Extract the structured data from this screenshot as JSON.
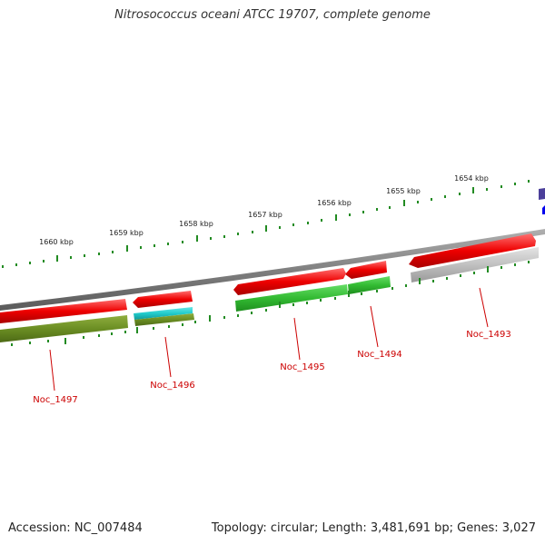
{
  "title": "Nitrosococcus oceani ATCC 19707, complete genome",
  "footer": {
    "accession": "Accession: NC_007484",
    "summary": "Topology: circular; Length: 3,481,691 bp; Genes: 3,027"
  },
  "ticks": [
    "1654 kbp",
    "1655 kbp",
    "1656 kbp",
    "1657 kbp",
    "1658 kbp",
    "1659 kbp",
    "1660 kbp"
  ],
  "genes": [
    "Noc_1493",
    "Noc_1494",
    "Noc_1495",
    "Noc_1496",
    "Noc_1497"
  ],
  "colors": {
    "cds": "#ee0000",
    "cog_green": "#33cc33",
    "cog_olive": "#6b8e23",
    "cog_cyan": "#22cccc",
    "cog_gray": "#bbbbbb",
    "backbone": "#808080",
    "ticks": "#228b22",
    "labels": "#cc0000"
  }
}
